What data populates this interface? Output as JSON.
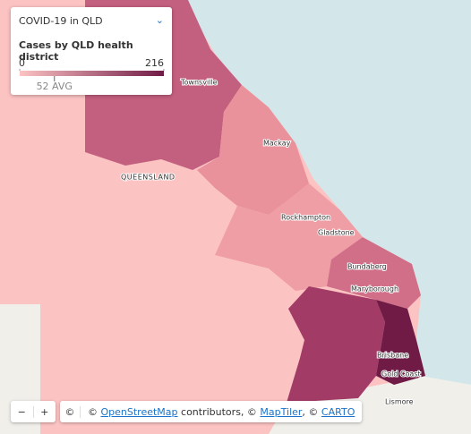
{
  "legend": {
    "title": "COVID-19 in QLD",
    "subtitle": "Cases by QLD health district",
    "min": 0,
    "max": 216,
    "avg": {
      "value": 52,
      "label": "52 AVG"
    }
  },
  "places": [
    "Townsville",
    "Mackay",
    "QUEENSLAND",
    "Rockhampton",
    "Gladstone",
    "Bundaberg",
    "Maryborough",
    "Brisbane",
    "Gold Coast",
    "Lismore"
  ],
  "controls": {
    "zoom_out": "−",
    "zoom_in": "+",
    "info": "©"
  },
  "attribution": [
    "© ",
    "OpenStreetMap",
    " contributors, © ",
    "MapTiler",
    ", © ",
    "CARTO"
  ]
}
